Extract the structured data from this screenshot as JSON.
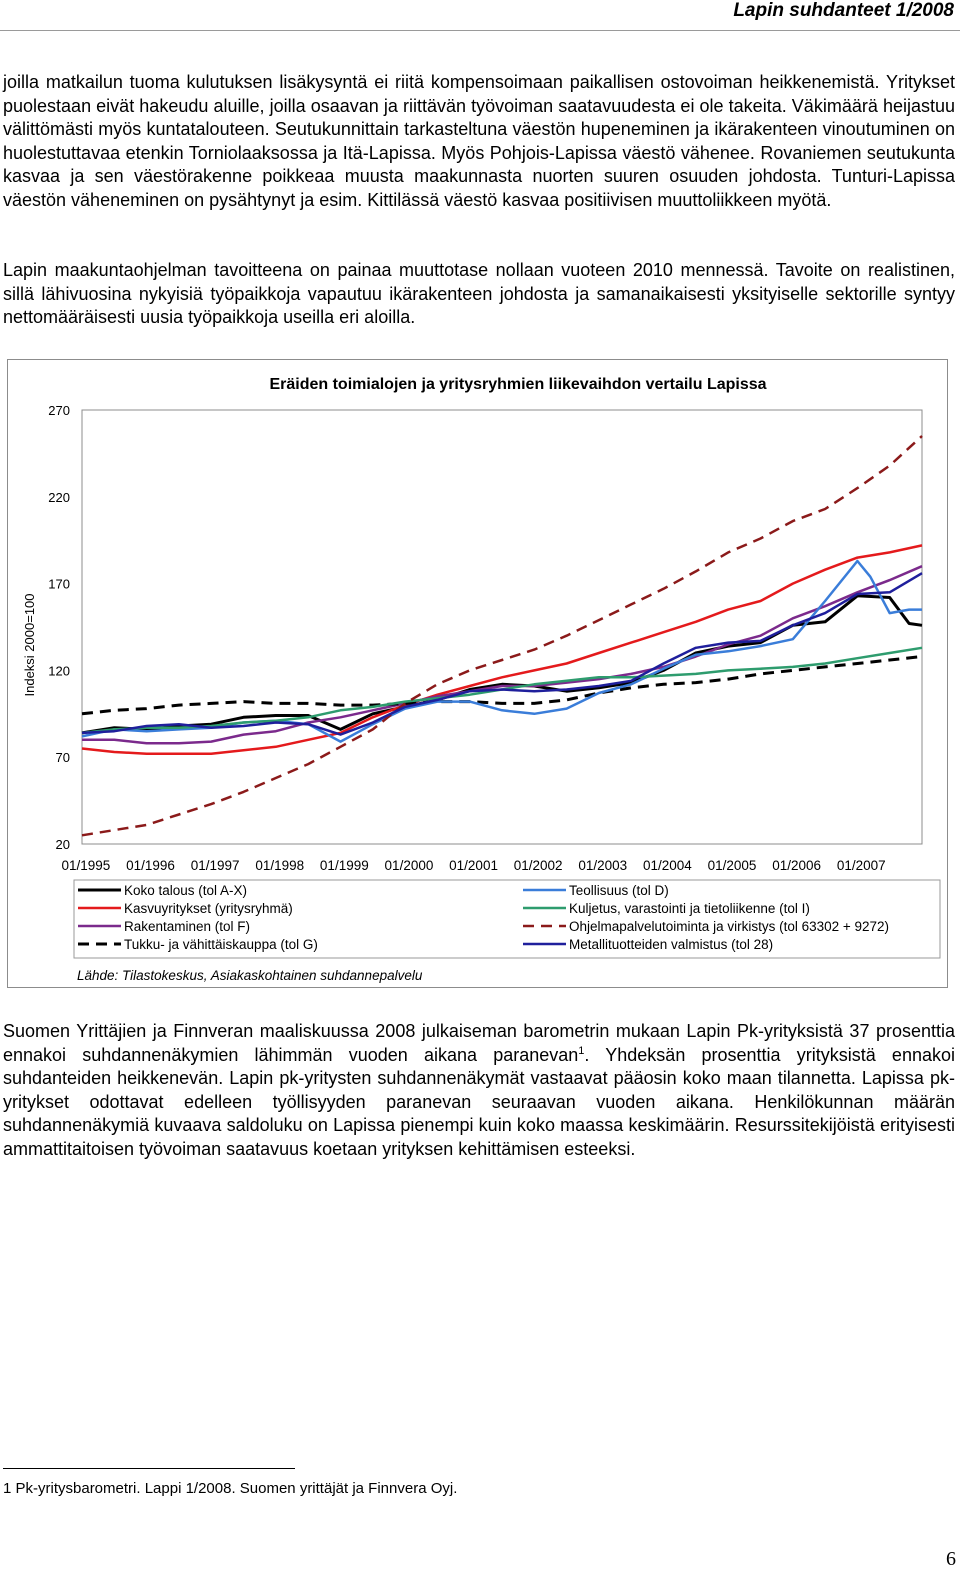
{
  "header": {
    "title": "Lapin suhdanteet 1/2008"
  },
  "paragraphs": {
    "p1": "joilla matkailun tuoma kulutuksen lisäkysyntä ei riitä kompensoimaan paikallisen ostovoiman heikkenemistä. Yritykset puolestaan eivät hakeudu aluille, joilla osaavan ja riittävän työvoiman saatavuudesta ei ole takeita. Väkimäärä heijastuu välittömästi myös kuntatalouteen. Seutukunnittain tarkasteltuna väestön hupeneminen ja ikärakenteen vinoutuminen on huolestuttavaa etenkin Torniolaaksossa ja Itä-Lapissa. Myös Pohjois-Lapissa väestö vähenee. Rovaniemen seutukunta kasvaa ja sen väestörakenne poikkeaa muusta maakunnasta nuorten suuren osuuden johdosta. Tunturi-Lapissa",
    "p1_last": "väestön väheneminen on pysähtynyt ja esim. Kittilässä väestö kasvaa positiivisen muuttoliikkeen myötä.",
    "p2": "Lapin maakuntaohjelman tavoitteena on painaa muuttotase nollaan vuoteen 2010 mennessä. Tavoite on realistinen, sillä lähivuosina nykyisiä työpaikkoja vapautuu ikärakenteen johdosta ja samanaikaisesti",
    "p2_last": "yksityiselle sektorille syntyy nettomääräisesti uusia työpaikkoja useilla eri aloilla.",
    "p3_a": "Suomen Yrittäjien ja Finnveran maaliskuussa 2008 julkaiseman barometrin mukaan Lapin Pk-yrityksistä 37 prosenttia ennakoi suhdannenäkymien lähimmän vuoden aikana paranevan",
    "p3_sup": "1",
    "p3_b": ". Yhdeksän prosenttia yrityksistä ennakoi suhdanteiden heikkenevän. Lapin pk-yritysten suhdannenäkymät vastaavat pääosin koko maan tilannetta. Lapissa pk-yritykset odottavat edelleen työllisyyden paranevan seuraavan vuoden aikana. Henkilökunnan määrän suhdannenäkymiä kuvaava saldoluku on Lapissa pienempi kuin koko maassa keskimäärin. Resurssitekijöistä erityisesti ammattitaitoisen työvoiman saatavuus koetaan",
    "p3_last": "yrityksen kehittämisen esteeksi."
  },
  "footnote": "1 Pk-yritysbarometri. Lappi 1/2008. Suomen yrittäjät ja Finnvera Oyj.",
  "page_number": "6",
  "chart_data": {
    "type": "line",
    "title": "Eräiden toimialojen ja yritysryhmien liikevaihdon vertailu Lapissa",
    "ylabel": "Indeksi 2000=100",
    "xlabel": "",
    "ylim": [
      20,
      270
    ],
    "yticks": [
      20,
      70,
      120,
      170,
      220,
      270
    ],
    "xlim": [
      1995.0,
      2008.0
    ],
    "xtick_labels": [
      "01/1995",
      "01/1996",
      "01/1997",
      "01/1998",
      "01/1999",
      "01/2000",
      "01/2001",
      "01/2002",
      "01/2003",
      "01/2004",
      "01/2005",
      "01/2006",
      "01/2007"
    ],
    "grid": false,
    "legend_position": "bottom",
    "source": "Lähde: Tilastokeskus, Asiakaskohtainen suhdannepalvelu",
    "series": [
      {
        "name": "Koko talous (tol A-X)",
        "color": "#000000",
        "dash": "solid",
        "width": 3,
        "x": [
          1995.0,
          1995.5,
          1996.0,
          1996.5,
          1997.0,
          1997.5,
          1998.0,
          1998.5,
          1999.0,
          1999.5,
          2000.0,
          2000.5,
          2001.0,
          2001.5,
          2002.0,
          2002.5,
          2003.0,
          2003.5,
          2004.0,
          2004.5,
          2005.0,
          2005.5,
          2006.0,
          2006.5,
          2007.0,
          2007.5,
          2007.8,
          2008.0
        ],
        "y": [
          84,
          87,
          86,
          88,
          89,
          93,
          94,
          94,
          86,
          95,
          99,
          103,
          109,
          112,
          111,
          108,
          110,
          113,
          120,
          130,
          134,
          136,
          146,
          148,
          163,
          162,
          147,
          146
        ]
      },
      {
        "name": "Kasvuyritykset (yritysryhmä)",
        "color": "#e41a1c",
        "dash": "solid",
        "width": 2.5,
        "x": [
          1995.0,
          1995.5,
          1996.0,
          1996.5,
          1997.0,
          1997.5,
          1998.0,
          1998.5,
          1999.0,
          1999.5,
          2000.0,
          2000.5,
          2001.0,
          2001.5,
          2002.0,
          2002.5,
          2003.0,
          2003.5,
          2004.0,
          2004.5,
          2005.0,
          2005.5,
          2006.0,
          2006.5,
          2007.0,
          2007.5,
          2008.0
        ],
        "y": [
          75,
          73,
          72,
          72,
          72,
          74,
          76,
          80,
          84,
          93,
          100,
          106,
          111,
          116,
          120,
          124,
          130,
          136,
          142,
          148,
          155,
          160,
          170,
          178,
          185,
          188,
          192
        ]
      },
      {
        "name": "Rakentaminen (tol F)",
        "color": "#7b2a8c",
        "dash": "solid",
        "width": 2.5,
        "x": [
          1995.0,
          1995.5,
          1996.0,
          1996.5,
          1997.0,
          1997.5,
          1998.0,
          1998.5,
          1999.0,
          1999.5,
          2000.0,
          2000.5,
          2001.0,
          2001.5,
          2002.0,
          2002.5,
          2003.0,
          2003.5,
          2004.0,
          2004.5,
          2005.0,
          2005.5,
          2006.0,
          2006.5,
          2007.0,
          2007.5,
          2008.0
        ],
        "y": [
          80,
          80,
          78,
          78,
          79,
          83,
          85,
          90,
          93,
          97,
          101,
          105,
          108,
          111,
          111,
          113,
          115,
          118,
          122,
          128,
          135,
          140,
          150,
          157,
          165,
          172,
          180
        ]
      },
      {
        "name": "Tukku- ja vähittäiskauppa (tol G)",
        "color": "#000000",
        "dash": "long",
        "width": 3,
        "x": [
          1995.0,
          1995.5,
          1996.0,
          1996.5,
          1997.0,
          1997.5,
          1998.0,
          1998.5,
          1999.0,
          1999.5,
          2000.0,
          2000.5,
          2001.0,
          2001.5,
          2002.0,
          2002.5,
          2003.0,
          2003.5,
          2004.0,
          2004.5,
          2005.0,
          2005.5,
          2006.0,
          2006.5,
          2007.0,
          2007.5,
          2008.0
        ],
        "y": [
          95,
          97,
          98,
          100,
          101,
          102,
          101,
          101,
          100,
          100,
          101,
          102,
          102,
          101,
          101,
          103,
          107,
          110,
          112,
          113,
          115,
          118,
          120,
          122,
          124,
          126,
          128
        ]
      },
      {
        "name": "Teollisuus (tol D)",
        "color": "#3a7dd9",
        "dash": "solid",
        "width": 2.5,
        "x": [
          1995.0,
          1995.5,
          1996.0,
          1996.5,
          1997.0,
          1997.5,
          1998.0,
          1998.5,
          1999.0,
          1999.5,
          2000.0,
          2000.5,
          2001.0,
          2001.5,
          2002.0,
          2002.5,
          2003.0,
          2003.5,
          2004.0,
          2004.5,
          2005.0,
          2005.5,
          2006.0,
          2006.5,
          2007.0,
          2007.2,
          2007.5,
          2007.8,
          2008.0
        ],
        "y": [
          82,
          86,
          85,
          86,
          87,
          90,
          91,
          89,
          79,
          89,
          98,
          102,
          102,
          97,
          95,
          98,
          107,
          112,
          121,
          129,
          131,
          134,
          138,
          160,
          183,
          174,
          153,
          155,
          155
        ]
      },
      {
        "name": "Kuljetus, varastointi ja tietoliikenne (tol I)",
        "color": "#2e9c6e",
        "dash": "solid",
        "width": 2.5,
        "x": [
          1995.0,
          1995.5,
          1996.0,
          1996.5,
          1997.0,
          1997.5,
          1998.0,
          1998.5,
          1999.0,
          1999.5,
          2000.0,
          2000.5,
          2001.0,
          2001.5,
          2002.0,
          2002.5,
          2003.0,
          2003.5,
          2004.0,
          2004.5,
          2005.0,
          2005.5,
          2006.0,
          2006.5,
          2007.0,
          2007.5,
          2008.0
        ],
        "y": [
          84,
          86,
          87,
          87,
          88,
          90,
          91,
          93,
          97,
          99,
          102,
          104,
          106,
          109,
          112,
          114,
          116,
          116,
          117,
          118,
          120,
          121,
          122,
          124,
          127,
          130,
          133
        ]
      },
      {
        "name": "Ohjelmapalvelutoiminta ja virkistys (tol 63302 + 9272)",
        "color": "#8b1a1a",
        "dash": "long",
        "width": 2.5,
        "x": [
          1995.0,
          1995.5,
          1996.0,
          1996.5,
          1997.0,
          1997.5,
          1998.0,
          1998.5,
          1999.0,
          1999.5,
          2000.0,
          2000.5,
          2001.0,
          2001.5,
          2002.0,
          2002.5,
          2003.0,
          2003.5,
          2004.0,
          2004.5,
          2005.0,
          2005.5,
          2006.0,
          2006.5,
          2007.0,
          2007.5,
          2008.0
        ],
        "y": [
          25,
          28,
          31,
          37,
          43,
          50,
          58,
          66,
          76,
          86,
          101,
          112,
          120,
          126,
          132,
          140,
          149,
          158,
          167,
          177,
          188,
          196,
          206,
          213,
          225,
          238,
          255
        ]
      },
      {
        "name": "Metallituotteiden valmistus (tol 28)",
        "color": "#1f1f9c",
        "dash": "solid",
        "width": 2.5,
        "x": [
          1995.0,
          1995.5,
          1996.0,
          1996.5,
          1997.0,
          1997.5,
          1998.0,
          1998.5,
          1999.0,
          1999.5,
          2000.0,
          2000.5,
          2001.0,
          2001.5,
          2002.0,
          2002.5,
          2003.0,
          2003.5,
          2004.0,
          2004.5,
          2005.0,
          2005.5,
          2006.0,
          2006.5,
          2007.0,
          2007.5,
          2008.0
        ],
        "y": [
          84,
          85,
          88,
          89,
          87,
          88,
          90,
          89,
          83,
          90,
          99,
          103,
          108,
          109,
          108,
          109,
          111,
          114,
          124,
          133,
          136,
          137,
          146,
          153,
          164,
          165,
          176
        ]
      }
    ]
  }
}
